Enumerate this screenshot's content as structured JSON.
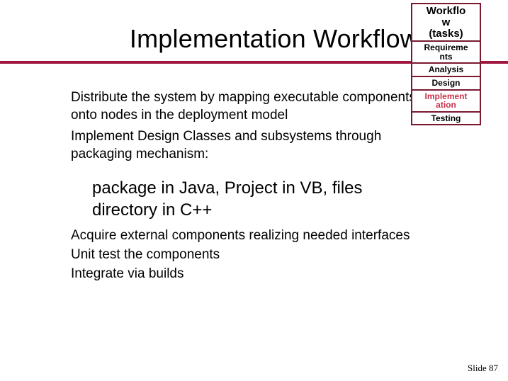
{
  "title": "Implementation Workflow",
  "rule_color": "#a0153e",
  "body": {
    "p1": "Distribute the system by mapping executable components onto nodes in the deployment model",
    "p2": "Implement Design Classes and subsystems through packaging mechanism:",
    "indent": "package in Java, Project in VB, files directory in C++",
    "lower1": "Acquire external components realizing needed interfaces",
    "lower2": "Unit test the components",
    "lower3": "Integrate via builds"
  },
  "workflow_table": {
    "header": "Workflow (tasks)",
    "rows": [
      {
        "label": "Requirements",
        "highlight": false
      },
      {
        "label": "Analysis",
        "highlight": false
      },
      {
        "label": "Design",
        "highlight": false
      },
      {
        "label": "Implementation",
        "highlight": true
      },
      {
        "label": "Testing",
        "highlight": false
      }
    ],
    "border_color": "#7a1830",
    "highlight_color": "#c9314a"
  },
  "slide_number": "Slide 87"
}
